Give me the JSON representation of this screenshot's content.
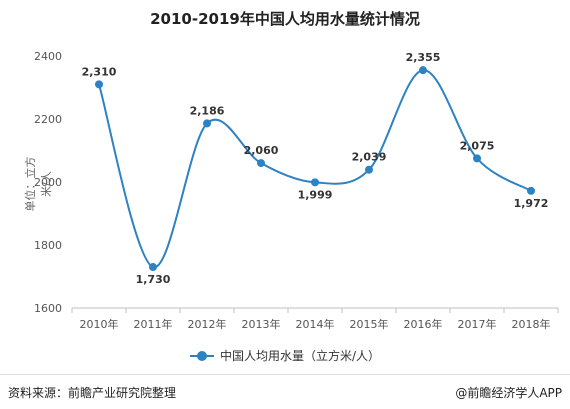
{
  "chart_data": {
    "type": "line",
    "title": "2010-2019年中国人均用水量统计情况",
    "xlabel": "",
    "ylabel": "单位：立方米/人",
    "categories": [
      "2010年",
      "2011年",
      "2012年",
      "2013年",
      "2014年",
      "2015年",
      "2016年",
      "2017年",
      "2018年"
    ],
    "series": [
      {
        "name": "中国人均用水量（立方米/人）",
        "values": [
          2310,
          1730,
          2186,
          2060,
          1999,
          2039,
          2355,
          2075,
          1972
        ],
        "labels": [
          "2,310",
          "1,730",
          "2,186",
          "2,060",
          "1,999",
          "2,039",
          "2,355",
          "2,075",
          "1,972"
        ],
        "color": "#2c82c2"
      }
    ],
    "ylim": [
      1600,
      2400
    ],
    "yticks": [
      1600,
      1800,
      2000,
      2200,
      2400
    ],
    "grid": false,
    "legend": "bottom",
    "smooth": true
  },
  "footer": {
    "source": "资料来源：前瞻产业研究院整理",
    "brand": "@前瞻经济学人APP"
  }
}
